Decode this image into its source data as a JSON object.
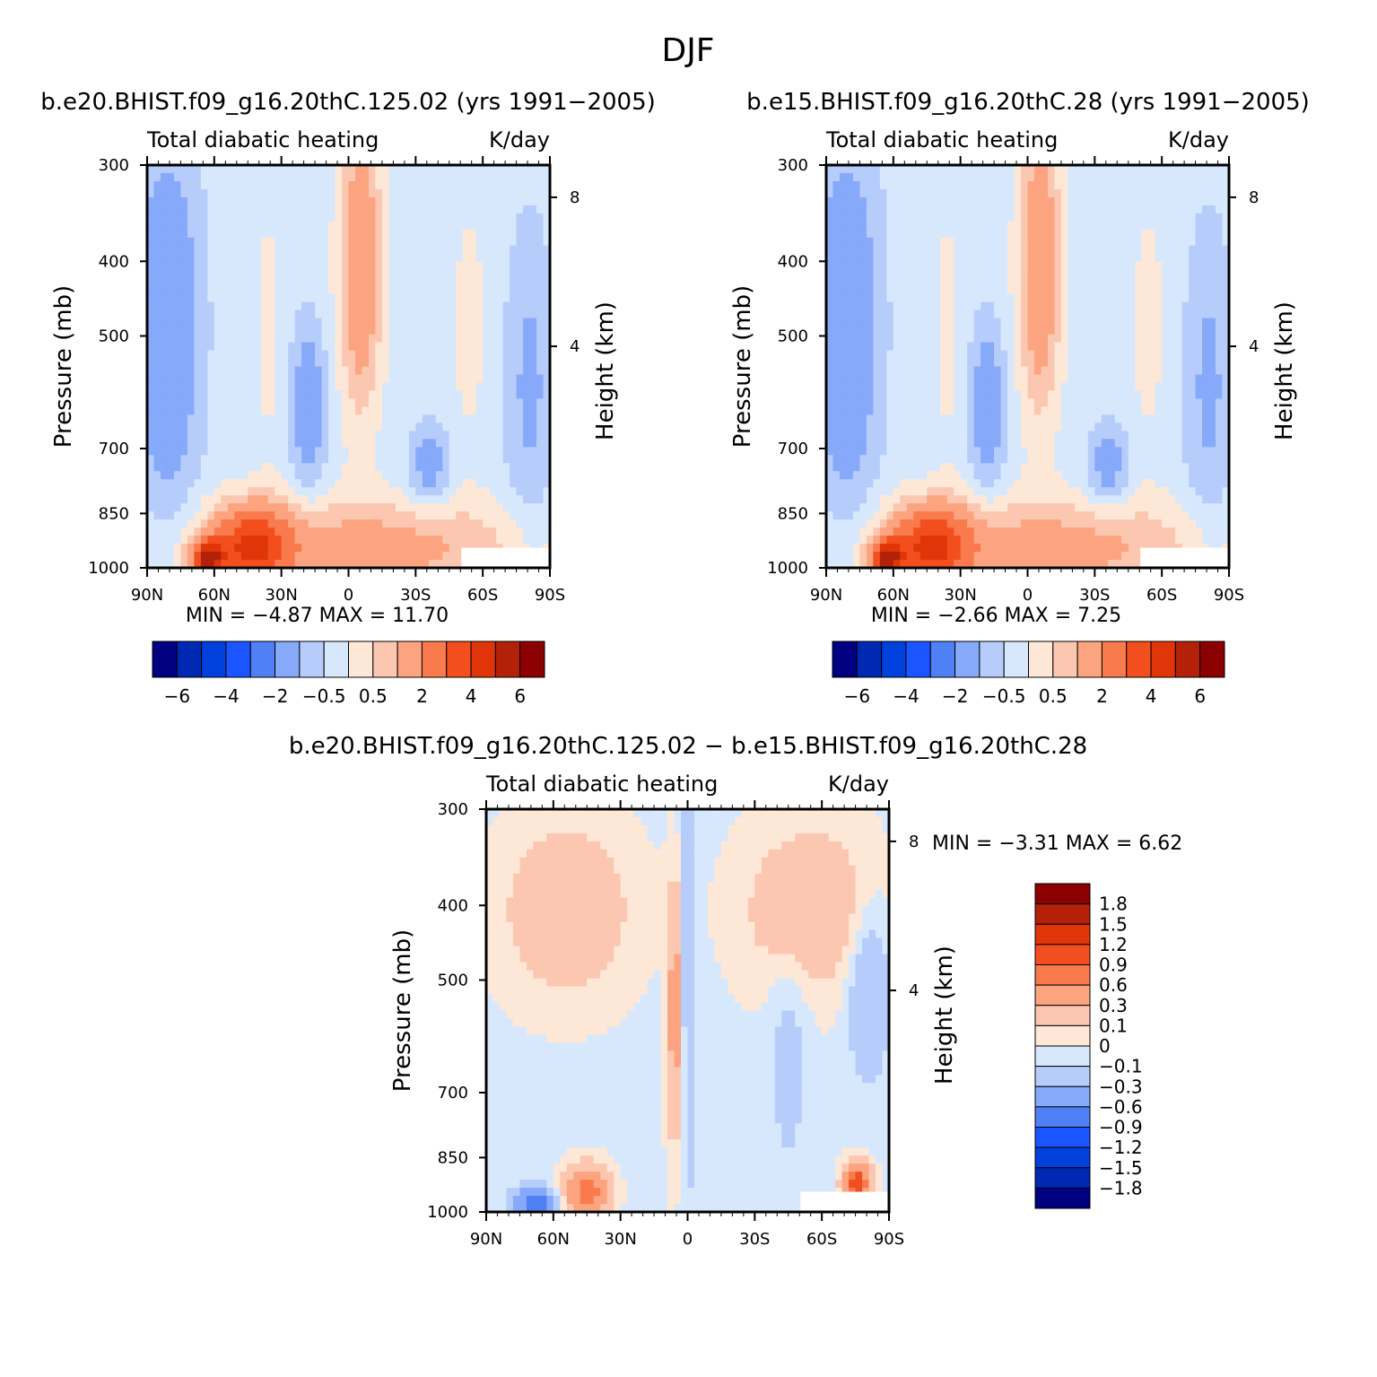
{
  "title": "DJF",
  "chart_data": [
    {
      "type": "heatmap",
      "title": "b.e20.BHIST.f09_g16.20thC.125.02 (yrs 1991−2005)",
      "left_string": "Total diabatic heating",
      "right_string": "K/day",
      "ylabel": "Pressure (mb)",
      "y2label": "Height (km)",
      "xlabel": "",
      "x_ticks": [
        "90N",
        "60N",
        "30N",
        "0",
        "30S",
        "60S",
        "90S"
      ],
      "xlim": [
        90,
        -90
      ],
      "y_ticks": [
        "300",
        "400",
        "500",
        "700",
        "850",
        "1000"
      ],
      "y_tick_values": [
        300,
        400,
        500,
        700,
        850,
        1000
      ],
      "ylim": [
        1000,
        300
      ],
      "y2_ticks": [
        "8",
        "4"
      ],
      "min_max": "MIN =   −4.87   MAX =    11.70",
      "colorbar_labels": [
        "−6",
        "−4",
        "−2",
        "−0.5",
        "0.5",
        "2",
        "4",
        "6"
      ],
      "colors": [
        "#000080",
        "#0029b3",
        "#0040dd",
        "#1a55ff",
        "#4f80f5",
        "#87a9fa",
        "#b6ccfb",
        "#d7e8fd",
        "#fde8d8",
        "#fcc7b0",
        "#fba47f",
        "#f97a4c",
        "#f34f1e",
        "#df3509",
        "#b32208",
        "#8b0000"
      ]
    },
    {
      "type": "heatmap",
      "title": "b.e15.BHIST.f09_g16.20thC.28 (yrs 1991−2005)",
      "left_string": "Total diabatic heating",
      "right_string": "K/day",
      "ylabel": "Pressure (mb)",
      "y2label": "Height (km)",
      "xlabel": "",
      "x_ticks": [
        "90N",
        "60N",
        "30N",
        "0",
        "30S",
        "60S",
        "90S"
      ],
      "xlim": [
        90,
        -90
      ],
      "y_ticks": [
        "300",
        "400",
        "500",
        "700",
        "850",
        "1000"
      ],
      "y_tick_values": [
        300,
        400,
        500,
        700,
        850,
        1000
      ],
      "ylim": [
        1000,
        300
      ],
      "y2_ticks": [
        "8",
        "4"
      ],
      "min_max": "MIN =   −2.66   MAX =    7.25",
      "colorbar_labels": [
        "−6",
        "−4",
        "−2",
        "−0.5",
        "0.5",
        "2",
        "4",
        "6"
      ],
      "colors": [
        "#000080",
        "#0029b3",
        "#0040dd",
        "#1a55ff",
        "#4f80f5",
        "#87a9fa",
        "#b6ccfb",
        "#d7e8fd",
        "#fde8d8",
        "#fcc7b0",
        "#fba47f",
        "#f97a4c",
        "#f34f1e",
        "#df3509",
        "#b32208",
        "#8b0000"
      ]
    },
    {
      "type": "heatmap",
      "title": "b.e20.BHIST.f09_g16.20thC.125.02 − b.e15.BHIST.f09_g16.20thC.28",
      "left_string": "Total diabatic heating",
      "right_string": "K/day",
      "ylabel": "Pressure (mb)",
      "y2label": "Height (km)",
      "xlabel": "",
      "x_ticks": [
        "90N",
        "60N",
        "30N",
        "0",
        "30S",
        "60S",
        "90S"
      ],
      "xlim": [
        90,
        -90
      ],
      "y_ticks": [
        "300",
        "400",
        "500",
        "700",
        "850",
        "1000"
      ],
      "y_tick_values": [
        300,
        400,
        500,
        700,
        850,
        1000
      ],
      "ylim": [
        1000,
        300
      ],
      "y2_ticks": [
        "8",
        "4"
      ],
      "min_max": "MIN =   −3.31   MAX =    6.62",
      "colorbar_labels": [
        "1.8",
        "1.5",
        "1.2",
        "0.9",
        "0.6",
        "0.3",
        "0.1",
        "0",
        "−0.1",
        "−0.3",
        "−0.6",
        "−0.9",
        "−1.2",
        "−1.5",
        "−1.8"
      ],
      "colors": [
        "#8b0000",
        "#b32208",
        "#df3509",
        "#f34f1e",
        "#f97a4c",
        "#fba47f",
        "#fcc7b0",
        "#fde8d8",
        "#d7e8fd",
        "#b6ccfb",
        "#87a9fa",
        "#4f80f5",
        "#1a55ff",
        "#0040dd",
        "#0029b3",
        "#000080"
      ]
    }
  ]
}
